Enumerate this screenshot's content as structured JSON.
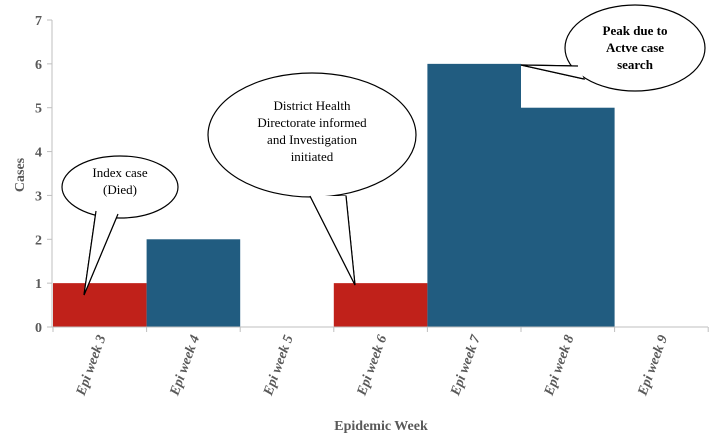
{
  "chart_data": {
    "type": "bar",
    "categories": [
      "Epi week 3",
      "Epi week 4",
      "Epi week 5",
      "Epi week 6",
      "Epi week 7",
      "Epi week 8",
      "Epi week 9"
    ],
    "values": [
      1,
      2,
      0,
      1,
      6,
      5,
      0
    ],
    "bar_colors": [
      "#c0211a",
      "#215c80",
      "#215c80",
      "#c0211a",
      "#215c80",
      "#215c80",
      "#215c80"
    ],
    "xlabel": "Epidemic Week",
    "ylabel": "Cases",
    "ylim": [
      0,
      7
    ],
    "yticks": [
      0,
      1,
      2,
      3,
      4,
      5,
      6,
      7
    ],
    "grid": false,
    "annotations": [
      {
        "category": "Epi week 3",
        "lines": [
          "Index case",
          "(Died)"
        ],
        "bold": false
      },
      {
        "category": "Epi week 6",
        "lines": [
          "District Health",
          "Directorate informed",
          "and Investigation",
          "initiated"
        ],
        "bold": false
      },
      {
        "category": "Epi week 7",
        "lines": [
          "Peak due to",
          "Actve case",
          "search"
        ],
        "bold": true
      }
    ]
  }
}
